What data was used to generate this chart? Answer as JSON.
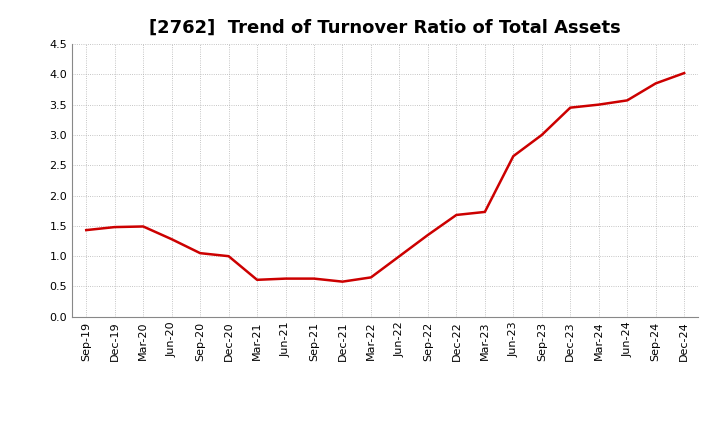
{
  "title": "[2762]  Trend of Turnover Ratio of Total Assets",
  "x_labels": [
    "Sep-19",
    "Dec-19",
    "Mar-20",
    "Jun-20",
    "Sep-20",
    "Dec-20",
    "Mar-21",
    "Jun-21",
    "Sep-21",
    "Dec-21",
    "Mar-22",
    "Jun-22",
    "Sep-22",
    "Dec-22",
    "Mar-23",
    "Jun-23",
    "Sep-23",
    "Dec-23",
    "Mar-24",
    "Jun-24",
    "Sep-24",
    "Dec-24"
  ],
  "y_values": [
    1.43,
    1.48,
    1.49,
    1.28,
    1.05,
    1.0,
    0.61,
    0.63,
    0.63,
    0.58,
    0.65,
    1.0,
    1.35,
    1.68,
    1.73,
    2.65,
    3.0,
    3.45,
    3.5,
    3.57,
    3.85,
    4.02
  ],
  "line_color": "#cc0000",
  "background_color": "#ffffff",
  "grid_color": "#aaaaaa",
  "ylim": [
    0.0,
    4.5
  ],
  "yticks": [
    0.0,
    0.5,
    1.0,
    1.5,
    2.0,
    2.5,
    3.0,
    3.5,
    4.0,
    4.5
  ],
  "title_fontsize": 13,
  "tick_fontsize": 8,
  "line_width": 1.8
}
